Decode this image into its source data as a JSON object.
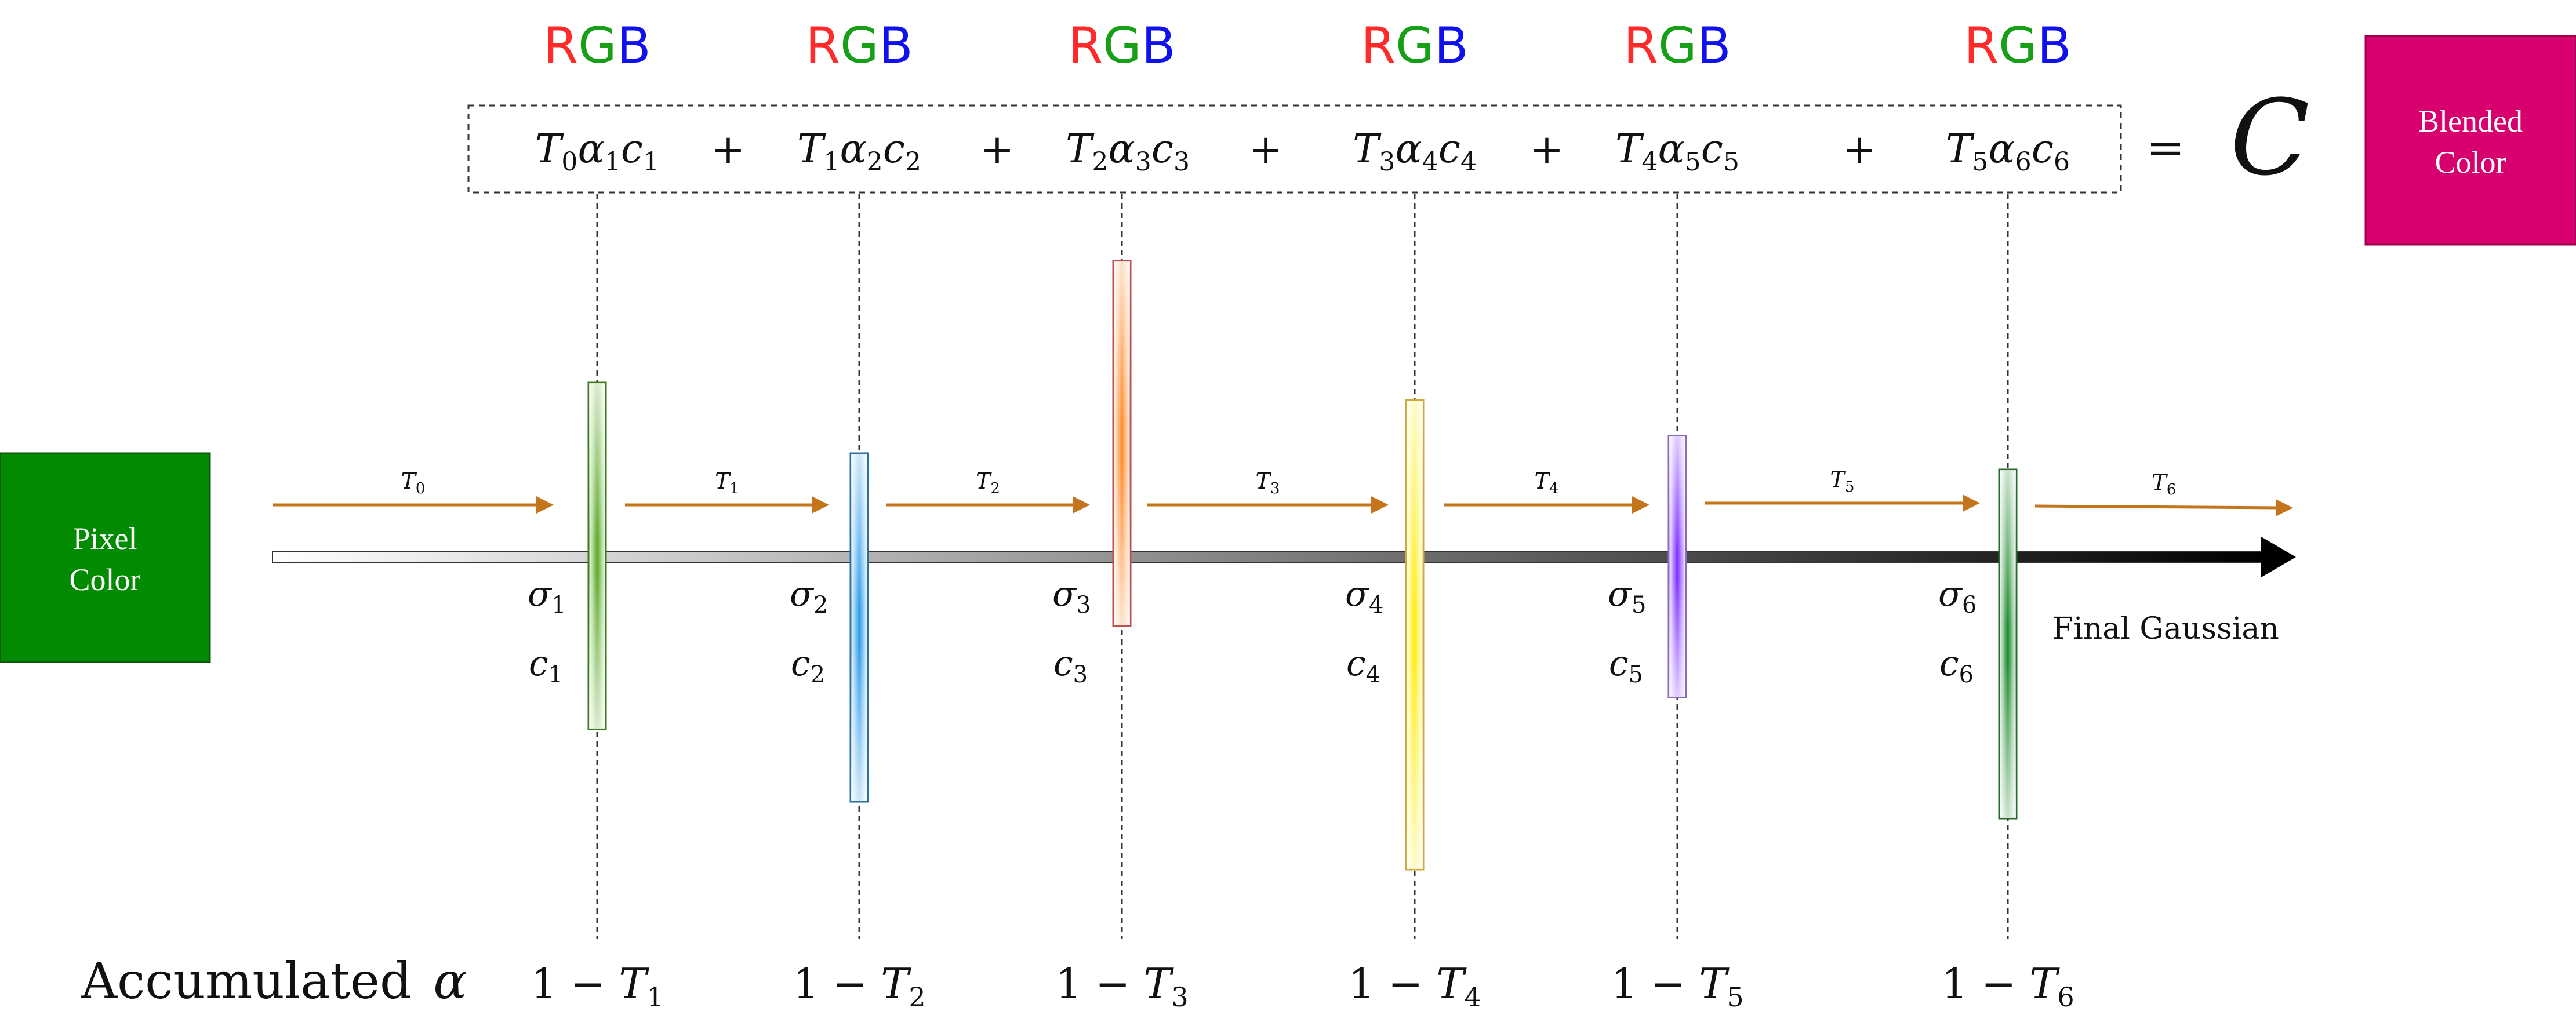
{
  "pixel_box": {
    "line1": "Pixel",
    "line2": "Color",
    "color": "#038a03"
  },
  "blended_box": {
    "line1": "Blended",
    "line2": "Color",
    "color": "#d8006f"
  },
  "rgb": {
    "r": "R",
    "g": "G",
    "b": "B",
    "colors": {
      "r": "#ff2b2b",
      "g": "#17a017",
      "b": "#1111ee"
    }
  },
  "equation": {
    "plus": "+",
    "equals": "=",
    "result": "C",
    "result_color": "#ff2d6d"
  },
  "final_label": "Final Gaussian",
  "accumulated_label": "Accumulated",
  "accumulated_symbol": "α",
  "one_minus": "1 − ",
  "arrow_color": "#c4741a",
  "gaussians": [
    {
      "term": {
        "T": "T",
        "Ti": "0",
        "alpha": "α",
        "ai": "1",
        "c": "c",
        "ci": "1"
      },
      "sigma": "σ",
      "sigma_sub": "1",
      "c": "c",
      "c_sub": "1",
      "acc": "T",
      "acc_sub": "1",
      "color": "#5aaa28",
      "stroke": "#3a7a1a",
      "opacity_level": 0.55
    },
    {
      "term": {
        "T": "T",
        "Ti": "1",
        "alpha": "α",
        "ai": "2",
        "c": "c",
        "ci": "2"
      },
      "sigma": "σ",
      "sigma_sub": "2",
      "c": "c",
      "c_sub": "2",
      "acc": "T",
      "acc_sub": "2",
      "color": "#2a9be8",
      "stroke": "#2a6fa0",
      "opacity_level": 0.55
    },
    {
      "term": {
        "T": "T",
        "Ti": "2",
        "alpha": "α",
        "ai": "3",
        "c": "c",
        "ci": "3"
      },
      "sigma": "σ",
      "sigma_sub": "3",
      "c": "c",
      "c_sub": "3",
      "acc": "T",
      "acc_sub": "3",
      "color": "#ff8a2a",
      "stroke": "#c0504a",
      "opacity_level": 0.55
    },
    {
      "term": {
        "T": "T",
        "Ti": "3",
        "alpha": "α",
        "ai": "4",
        "c": "c",
        "ci": "4"
      },
      "sigma": "σ",
      "sigma_sub": "4",
      "c": "c",
      "c_sub": "4",
      "acc": "T",
      "acc_sub": "4",
      "color": "#ffee10",
      "stroke": "#d0a840",
      "opacity_level": 0.55
    },
    {
      "term": {
        "T": "T",
        "Ti": "4",
        "alpha": "α",
        "ai": "5",
        "c": "c",
        "ci": "5"
      },
      "sigma": "σ",
      "sigma_sub": "5",
      "c": "c",
      "c_sub": "5",
      "acc": "T",
      "acc_sub": "5",
      "color": "#7a2aff",
      "stroke": "#8a6ac0",
      "opacity_level": 0.55
    },
    {
      "term": {
        "T": "T",
        "Ti": "5",
        "alpha": "α",
        "ai": "6",
        "c": "c",
        "ci": "6"
      },
      "sigma": "σ",
      "sigma_sub": "6",
      "c": "c",
      "c_sub": "6",
      "acc": "T",
      "acc_sub": "6",
      "color": "#1a8a2a",
      "stroke": "#2a6a2a",
      "opacity_level": 0.55
    }
  ],
  "transmittance": [
    {
      "T": "T",
      "sub": "0"
    },
    {
      "T": "T",
      "sub": "1"
    },
    {
      "T": "T",
      "sub": "2"
    },
    {
      "T": "T",
      "sub": "3"
    },
    {
      "T": "T",
      "sub": "4"
    },
    {
      "T": "T",
      "sub": "5"
    },
    {
      "T": "T",
      "sub": "6"
    }
  ]
}
